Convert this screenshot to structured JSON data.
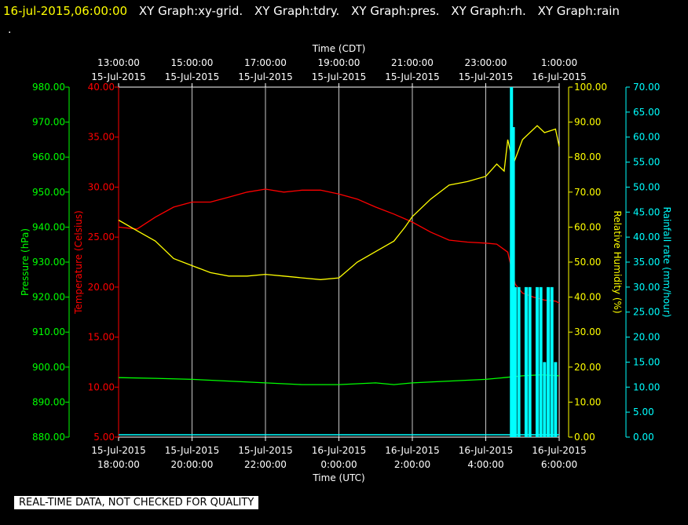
{
  "header": {
    "timestamp": "16-jul-2015,06:00:00",
    "titles": [
      "XY Graph:xy-grid.",
      "XY Graph:tdry.",
      "XY Graph:pres.",
      "XY Graph:rh.",
      "XY Graph:rain"
    ],
    "subline": "."
  },
  "footer_note": "REAL-TIME DATA, NOT CHECKED FOR QUALITY",
  "colors": {
    "background": "#000000",
    "grid": "#ffffff",
    "temperature": "#ff0000",
    "pressure": "#00ff00",
    "humidity": "#ffff00",
    "rain": "#00ffff"
  },
  "chart_data": {
    "type": "line",
    "grid": true,
    "x_unit": "hours UTC since 15-Jul-2015 18:00",
    "top_axis": {
      "label": "Time (CDT)",
      "ticks": [
        {
          "x": 0,
          "line1": "13:00:00",
          "line2": "15-Jul-2015"
        },
        {
          "x": 2,
          "line1": "15:00:00",
          "line2": "15-Jul-2015"
        },
        {
          "x": 4,
          "line1": "17:00:00",
          "line2": "15-Jul-2015"
        },
        {
          "x": 6,
          "line1": "19:00:00",
          "line2": "15-Jul-2015"
        },
        {
          "x": 8,
          "line1": "21:00:00",
          "line2": "15-Jul-2015"
        },
        {
          "x": 10,
          "line1": "23:00:00",
          "line2": "15-Jul-2015"
        },
        {
          "x": 12,
          "line1": "1:00:00",
          "line2": "16-Jul-2015"
        }
      ]
    },
    "bottom_axis": {
      "label": "Time (UTC)",
      "ticks": [
        {
          "x": 0,
          "line1": "15-Jul-2015",
          "line2": "18:00:00"
        },
        {
          "x": 2,
          "line1": "15-Jul-2015",
          "line2": "20:00:00"
        },
        {
          "x": 4,
          "line1": "15-Jul-2015",
          "line2": "22:00:00"
        },
        {
          "x": 6,
          "line1": "16-Jul-2015",
          "line2": "0:00:00"
        },
        {
          "x": 8,
          "line1": "16-Jul-2015",
          "line2": "2:00:00"
        },
        {
          "x": 10,
          "line1": "16-Jul-2015",
          "line2": "4:00:00"
        },
        {
          "x": 12,
          "line1": "16-Jul-2015",
          "line2": "6:00:00"
        }
      ]
    },
    "y_axes": {
      "pressure": {
        "label": "Pressure (hPa)",
        "range": [
          880,
          980
        ],
        "ticks": [
          "880.00",
          "890.00",
          "900.00",
          "910.00",
          "920.00",
          "930.00",
          "940.00",
          "950.00",
          "960.00",
          "970.00",
          "980.00"
        ]
      },
      "temperature": {
        "label": "Temperature (Celsius)",
        "range": [
          5,
          40
        ],
        "ticks": [
          "5.00",
          "10.00",
          "15.00",
          "20.00",
          "25.00",
          "30.00",
          "35.00",
          "40.00"
        ]
      },
      "humidity": {
        "label": "Relative Humidity (%)",
        "range": [
          0,
          100
        ],
        "ticks": [
          "0.00",
          "10.00",
          "20.00",
          "30.00",
          "40.00",
          "50.00",
          "60.00",
          "70.00",
          "80.00",
          "90.00",
          "100.00"
        ]
      },
      "rain": {
        "label": "Rainfall rate (mm/hour)",
        "range": [
          0,
          70
        ],
        "ticks": [
          "0.00",
          "5.00",
          "10.00",
          "15.00",
          "20.00",
          "25.00",
          "30.00",
          "35.00",
          "40.00",
          "45.00",
          "50.00",
          "55.00",
          "60.00",
          "65.00",
          "70.00"
        ]
      }
    },
    "series": [
      {
        "name": "tdry",
        "axis": "temperature",
        "x": [
          0,
          0.5,
          1,
          1.5,
          2,
          2.5,
          3,
          3.5,
          4,
          4.5,
          5,
          5.5,
          6,
          6.5,
          7,
          7.5,
          8,
          8.5,
          9,
          9.5,
          10,
          10.3,
          10.6,
          10.8,
          11,
          11.3,
          11.6,
          11.9,
          12
        ],
        "y": [
          26,
          25.8,
          27,
          28,
          28.5,
          28.5,
          29,
          29.5,
          29.8,
          29.5,
          29.7,
          29.7,
          29.3,
          28.8,
          28,
          27.3,
          26.5,
          25.5,
          24.7,
          24.5,
          24.4,
          24.3,
          23.5,
          20.3,
          19.4,
          19,
          18.7,
          18.6,
          18.4
        ]
      },
      {
        "name": "pres",
        "axis": "pressure",
        "x": [
          0,
          1,
          2,
          3,
          4,
          5,
          6,
          7,
          7.5,
          8,
          9,
          10,
          10.5,
          11,
          11.5,
          12
        ],
        "y": [
          897,
          896.8,
          896.5,
          896,
          895.5,
          895,
          895,
          895.5,
          895,
          895.5,
          896,
          896.5,
          897,
          897.5,
          897.8,
          897.5
        ]
      },
      {
        "name": "rh",
        "axis": "humidity",
        "x": [
          0,
          0.5,
          1,
          1.5,
          2,
          2.5,
          3,
          3.5,
          4,
          4.5,
          5,
          5.5,
          6,
          6.5,
          7,
          7.5,
          7.8,
          8,
          8.5,
          9,
          9.5,
          10,
          10.3,
          10.5,
          10.6,
          10.75,
          11,
          11.4,
          11.6,
          11.9,
          12
        ],
        "y": [
          62,
          59,
          56,
          51,
          49,
          47,
          46,
          46,
          46.5,
          46,
          45.5,
          45,
          45.5,
          50,
          53,
          56,
          60,
          63,
          68,
          72,
          73,
          74.5,
          78,
          76,
          85,
          78,
          85,
          89,
          87,
          88,
          83
        ]
      },
      {
        "name": "rain",
        "axis": "rain",
        "x": [
          10.7,
          10.75,
          10.8,
          10.9,
          11,
          11.1,
          11.2,
          11.3,
          11.4,
          11.5,
          11.6,
          11.7,
          11.8,
          11.9
        ],
        "y": [
          70,
          62,
          30,
          30,
          0,
          30,
          30,
          0,
          30,
          30,
          15,
          30,
          30,
          15
        ]
      }
    ]
  }
}
